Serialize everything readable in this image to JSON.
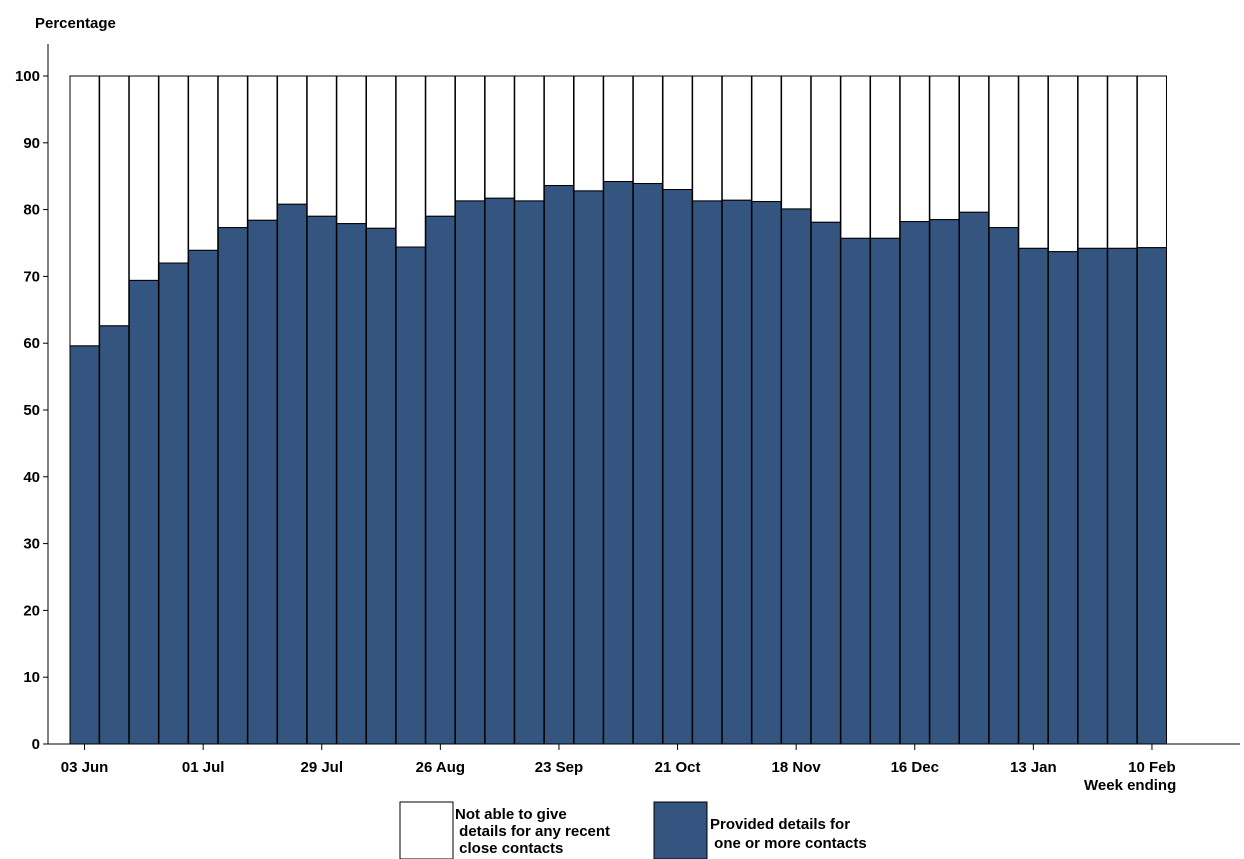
{
  "chart_data": {
    "type": "bar",
    "stacked": true,
    "ylabel": "Percentage",
    "xlabel": "Week ending",
    "ylim": [
      0,
      100
    ],
    "yticks": [
      0,
      10,
      20,
      30,
      40,
      50,
      60,
      70,
      80,
      90,
      100
    ],
    "grid": false,
    "x_tick_labels": [
      "03 Jun",
      "01 Jul",
      "29 Jul",
      "26 Aug",
      "23 Sep",
      "21 Oct",
      "18 Nov",
      "16 Dec",
      "13 Jan",
      "10 Feb"
    ],
    "x_tick_positions": [
      0,
      4,
      8,
      12,
      16,
      20,
      24,
      28,
      32,
      36
    ],
    "series": [
      {
        "name": "Provided details for one or more contacts",
        "legend_lines": [
          "Provided details for",
          " one or more contacts"
        ],
        "color": "#34557f",
        "values": [
          59.6,
          62.6,
          69.4,
          72.0,
          73.9,
          77.3,
          78.4,
          80.8,
          79.0,
          77.9,
          77.2,
          74.4,
          79.0,
          81.3,
          81.7,
          81.3,
          83.6,
          82.8,
          84.2,
          83.9,
          83.0,
          81.3,
          81.4,
          81.2,
          80.1,
          78.1,
          75.7,
          75.7,
          78.2,
          78.5,
          79.6,
          77.3,
          74.2,
          73.7,
          74.2,
          74.2,
          74.3
        ]
      },
      {
        "name": "Not able to give details for any recent close contacts",
        "legend_lines": [
          "Not able to give",
          " details for any recent",
          " close contacts"
        ],
        "color": "#ffffff",
        "values": [
          40.4,
          37.4,
          30.6,
          28.0,
          26.1,
          22.7,
          21.6,
          19.2,
          21.0,
          22.1,
          22.8,
          25.6,
          21.0,
          18.7,
          18.3,
          18.7,
          16.4,
          17.2,
          15.8,
          16.1,
          17.0,
          18.7,
          18.6,
          18.8,
          19.9,
          21.9,
          24.3,
          24.3,
          21.8,
          21.5,
          20.4,
          22.7,
          25.8,
          26.3,
          25.8,
          25.8,
          25.7
        ]
      }
    ],
    "legend_position": "bottom-center"
  }
}
